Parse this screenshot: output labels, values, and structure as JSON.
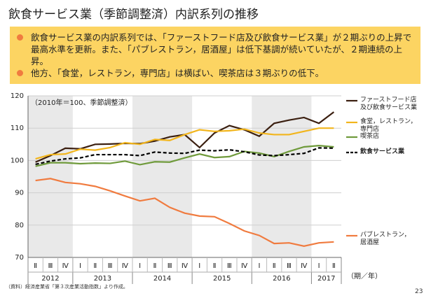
{
  "title": "飲食サービス業（季節調整済）内訳系列の推移",
  "bullets": [
    "飲食サービス業の内訳系列では、「ファーストフード店及び飲食サービス業」が２期ぶりの上昇で最高水準を更新。また、「パブレストラン，居酒屋」は低下基調が続いていたが、２期連続の上昇。",
    "他方、「食堂，レストラン，専門店」は横ばい、喫茶店は３期ぶりの低下。"
  ],
  "chart_data": {
    "type": "line",
    "y_axis_label": "（2010年＝100、季節調整済）",
    "x_axis_label": "（期／年）",
    "categories": [
      "Ⅱ",
      "Ⅲ",
      "Ⅳ",
      "Ⅰ",
      "Ⅱ",
      "Ⅲ",
      "Ⅳ",
      "Ⅰ",
      "Ⅱ",
      "Ⅲ",
      "Ⅳ",
      "Ⅰ",
      "Ⅱ",
      "Ⅲ",
      "Ⅳ",
      "Ⅰ",
      "Ⅱ",
      "Ⅲ",
      "Ⅳ",
      "Ⅰ",
      "Ⅱ"
    ],
    "x_groups": [
      "2012",
      "2013",
      "2014",
      "2015",
      "2016",
      "2017"
    ],
    "ylim": [
      70,
      120
    ],
    "yticks": [
      70,
      80,
      90,
      100,
      110,
      120
    ],
    "grid": true,
    "series": [
      {
        "name": "ファーストフード店\n及び飲食サービス業",
        "color": "#3b1f10",
        "values": [
          99.5,
          101.5,
          103.8,
          103.6,
          105,
          105.1,
          105.3,
          105.2,
          106,
          107.3,
          108,
          104,
          108.5,
          110.8,
          109.5,
          107.5,
          111.5,
          112.5,
          113.3,
          111.5,
          115
        ]
      },
      {
        "name": "食堂，レストラン，\n専門店",
        "color": "#f2b51c",
        "values": [
          100.5,
          101.8,
          102,
          103.5,
          103.2,
          104,
          105.5,
          105,
          106.5,
          106.2,
          108,
          109.5,
          109,
          109.2,
          109.7,
          108.5,
          108,
          108,
          109,
          110,
          110
        ]
      },
      {
        "name": "喫茶店",
        "color": "#6f9a3b",
        "values": [
          98.2,
          99.3,
          99.3,
          99,
          99.2,
          99.1,
          99.8,
          98.7,
          99.6,
          99.5,
          100.8,
          102,
          100.9,
          101.2,
          102.8,
          102.3,
          101.2,
          102.8,
          104.2,
          104.6,
          104.2
        ]
      },
      {
        "name": "飲食サービス業",
        "color": "#000000",
        "dash": true,
        "values": [
          98.8,
          99.8,
          100.5,
          100.8,
          101.8,
          101.8,
          101.8,
          101.5,
          102.6,
          102.3,
          102.2,
          103.2,
          103,
          103.3,
          102.7,
          101.7,
          101.5,
          101.8,
          102.2,
          103.9,
          103.8
        ]
      },
      {
        "name": "パブレストラン，\n居酒屋",
        "color": "#f07b3f",
        "values": [
          93.8,
          94.4,
          93.2,
          92.8,
          92,
          90.6,
          89,
          87.5,
          88.3,
          85.5,
          83.7,
          82.8,
          82.6,
          80.5,
          78.2,
          76.8,
          74.3,
          74.5,
          73.5,
          74.5,
          74.8
        ]
      }
    ]
  },
  "source": "（資料）経済産業省「第３次産業活動指数」より作成。",
  "page_number": "23"
}
